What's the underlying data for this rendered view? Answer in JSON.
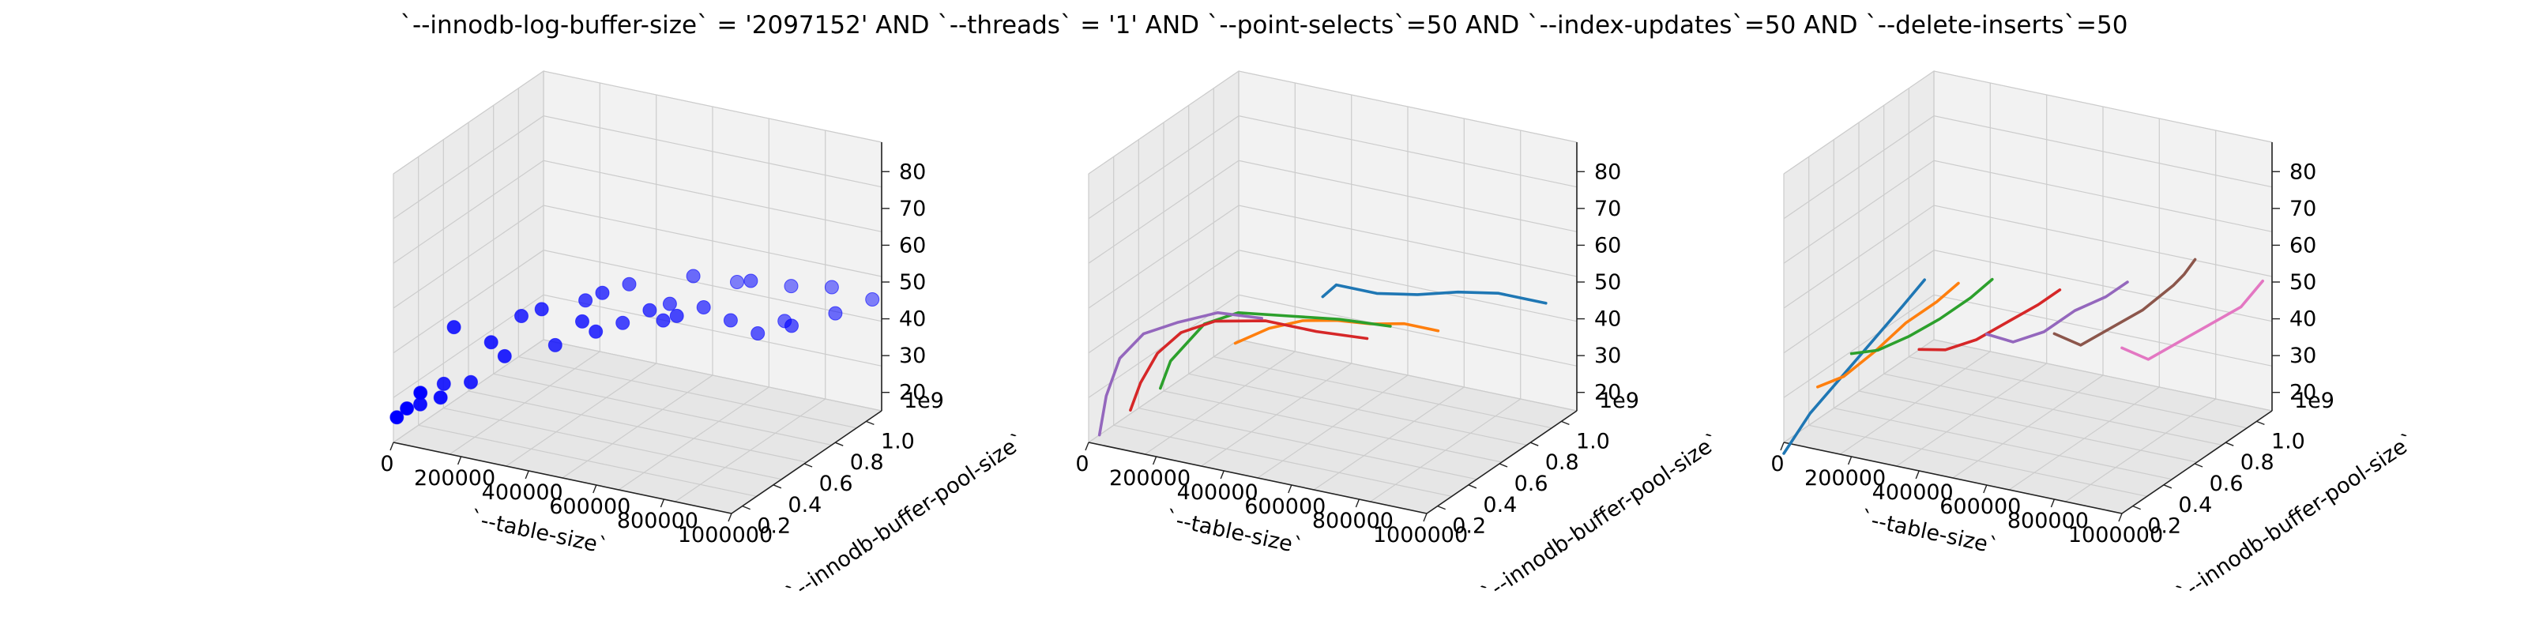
{
  "figure": {
    "title": "`--innodb-log-buffer-size` = '2097152' AND `--threads` = '1'  AND `--point-selects`=50 AND `--index-updates`=50 AND `--delete-inserts`=50"
  },
  "colors": {
    "scatter": "#0000ff",
    "pane_left": "#ebebeb",
    "pane_right": "#f2f2f2",
    "pane_floor": "#e6e6e6",
    "grid": "#cccccc",
    "series_palette": [
      "#1f77b4",
      "#ff7f0e",
      "#2ca02c",
      "#d62728",
      "#9467bd",
      "#8c564b",
      "#e377c2"
    ]
  },
  "chart_data": [
    {
      "type": "scatter3d",
      "xlabel": "`--table-size`",
      "ylabel": "`--innodb-buffer-pool-size`",
      "zlabel": "",
      "x_ticks": [
        "0",
        "200000",
        "400000",
        "600000",
        "800000",
        "1000000"
      ],
      "y_ticks": [
        "0.2",
        "0.4",
        "0.6",
        "0.8",
        "1.0"
      ],
      "y_offset_label": "1e9",
      "z_ticks": [
        "20",
        "30",
        "40",
        "50",
        "60",
        "70",
        "80"
      ],
      "xlim": [
        0,
        1000000
      ],
      "ylim": [
        0.13,
        1.1
      ],
      "zlim": [
        15,
        88
      ],
      "points": [
        {
          "x": 10000,
          "y": 0.13,
          "z": 22
        },
        {
          "x": 40000,
          "y": 0.13,
          "z": 25
        },
        {
          "x": 80000,
          "y": 0.13,
          "z": 30
        },
        {
          "x": 20000,
          "y": 0.26,
          "z": 22
        },
        {
          "x": 80000,
          "y": 0.26,
          "z": 25
        },
        {
          "x": 30000,
          "y": 0.39,
          "z": 24
        },
        {
          "x": 110000,
          "y": 0.39,
          "z": 26
        },
        {
          "x": 60000,
          "y": 0.39,
          "z": 40
        },
        {
          "x": 170000,
          "y": 0.39,
          "z": 38
        },
        {
          "x": 210000,
          "y": 0.39,
          "z": 35
        },
        {
          "x": 200000,
          "y": 0.52,
          "z": 42
        },
        {
          "x": 260000,
          "y": 0.52,
          "z": 45
        },
        {
          "x": 300000,
          "y": 0.52,
          "z": 36
        },
        {
          "x": 380000,
          "y": 0.52,
          "z": 44
        },
        {
          "x": 420000,
          "y": 0.52,
          "z": 42
        },
        {
          "x": 330000,
          "y": 0.65,
          "z": 45
        },
        {
          "x": 380000,
          "y": 0.65,
          "z": 48
        },
        {
          "x": 440000,
          "y": 0.65,
          "z": 41
        },
        {
          "x": 520000,
          "y": 0.65,
          "z": 46
        },
        {
          "x": 560000,
          "y": 0.65,
          "z": 44
        },
        {
          "x": 600000,
          "y": 0.65,
          "z": 46
        },
        {
          "x": 400000,
          "y": 0.78,
          "z": 47
        },
        {
          "x": 520000,
          "y": 0.78,
          "z": 44
        },
        {
          "x": 620000,
          "y": 0.78,
          "z": 45
        },
        {
          "x": 700000,
          "y": 0.78,
          "z": 43
        },
        {
          "x": 780000,
          "y": 0.78,
          "z": 41
        },
        {
          "x": 880000,
          "y": 0.78,
          "z": 45
        },
        {
          "x": 530000,
          "y": 0.91,
          "z": 48
        },
        {
          "x": 700000,
          "y": 0.91,
          "z": 50
        },
        {
          "x": 800000,
          "y": 0.91,
          "z": 41
        },
        {
          "x": 950000,
          "y": 0.91,
          "z": 46
        },
        {
          "x": 600000,
          "y": 1.04,
          "z": 44
        },
        {
          "x": 760000,
          "y": 1.04,
          "z": 46
        },
        {
          "x": 880000,
          "y": 1.04,
          "z": 48
        },
        {
          "x": 1000000,
          "y": 1.04,
          "z": 47
        }
      ]
    },
    {
      "type": "line3d",
      "xlabel": "`--table-size`",
      "ylabel": "`--innodb-buffer-pool-size`",
      "zlabel": "",
      "x_ticks": [
        "0",
        "200000",
        "400000",
        "600000",
        "800000",
        "1000000"
      ],
      "y_ticks": [
        "0.2",
        "0.4",
        "0.6",
        "0.8",
        "1.0"
      ],
      "y_offset_label": "1e9",
      "z_ticks": [
        "20",
        "30",
        "40",
        "50",
        "60",
        "70",
        "80"
      ],
      "xlim": [
        0,
        1000000
      ],
      "ylim": [
        0.13,
        1.1
      ],
      "zlim": [
        15,
        88
      ],
      "series": [
        {
          "x": [
            340000,
            380000,
            500000,
            620000,
            740000,
            860000,
            1000000
          ],
          "y": [
            0.9,
            0.9,
            0.9,
            0.9,
            0.9,
            0.9,
            0.9
          ],
          "z": [
            39,
            43,
            43,
            45,
            48,
            50,
            50
          ]
        },
        {
          "x": [
            150000,
            250000,
            350000,
            450000,
            550000,
            650000,
            750000
          ],
          "y": [
            0.75,
            0.75,
            0.75,
            0.75,
            0.75,
            0.75,
            0.75
          ],
          "z": [
            27,
            33,
            37,
            39,
            40,
            42,
            42
          ]
        },
        {
          "x": [
            20000,
            50000,
            100000,
            150000,
            250000,
            400000,
            550000,
            700000
          ],
          "y": [
            0.55,
            0.55,
            0.55,
            0.55,
            0.55,
            0.55,
            0.55,
            0.55
          ],
          "z": [
            18,
            26,
            32,
            38,
            43,
            45,
            47,
            48
          ]
        },
        {
          "x": [
            0,
            30000,
            80000,
            150000,
            250000,
            400000,
            550000,
            700000
          ],
          "y": [
            0.4,
            0.4,
            0.4,
            0.4,
            0.4,
            0.4,
            0.4,
            0.4
          ],
          "z": [
            16,
            24,
            33,
            40,
            45,
            48,
            48,
            49
          ]
        },
        {
          "x": [
            0,
            20000,
            60000,
            130000,
            230000,
            350000,
            480000
          ],
          "y": [
            0.2,
            0.2,
            0.2,
            0.2,
            0.2,
            0.2,
            0.2
          ],
          "z": [
            15,
            26,
            37,
            45,
            50,
            55,
            56
          ]
        }
      ]
    },
    {
      "type": "line3d",
      "xlabel": "`--table-size`",
      "ylabel": "`--innodb-buffer-pool-size`",
      "zlabel": "",
      "x_ticks": [
        "0",
        "200000",
        "400000",
        "600000",
        "800000",
        "1000000"
      ],
      "y_ticks": [
        "0.2",
        "0.4",
        "0.6",
        "0.8",
        "1.0"
      ],
      "y_offset_label": "1e9",
      "z_ticks": [
        "20",
        "30",
        "40",
        "50",
        "60",
        "70",
        "80"
      ],
      "xlim": [
        0,
        1000000
      ],
      "ylim": [
        0.13,
        1.1
      ],
      "zlim": [
        15,
        88
      ],
      "series": [
        {
          "x": [
            0,
            0,
            0,
            0,
            0,
            0
          ],
          "y": [
            0.13,
            0.3,
            0.5,
            0.7,
            0.9,
            1.04
          ],
          "z": [
            12,
            18,
            22,
            26,
            30,
            33
          ]
        },
        {
          "x": [
            100000,
            100000,
            100000,
            100000,
            100000,
            100000
          ],
          "y": [
            0.13,
            0.3,
            0.5,
            0.7,
            0.9,
            1.04
          ],
          "z": [
            32,
            30,
            31,
            33,
            33,
            34
          ]
        },
        {
          "x": [
            200000,
            200000,
            200000,
            200000,
            200000,
            200000
          ],
          "y": [
            0.13,
            0.3,
            0.5,
            0.7,
            0.9,
            1.04
          ],
          "z": [
            43,
            39,
            37,
            36,
            36,
            37
          ]
        },
        {
          "x": [
            400000,
            400000,
            400000,
            400000,
            400000,
            400000
          ],
          "y": [
            0.13,
            0.3,
            0.5,
            0.7,
            0.9,
            1.04
          ],
          "z": [
            48,
            43,
            40,
            39,
            38,
            38
          ]
        },
        {
          "x": [
            600000,
            600000,
            600000,
            600000,
            600000,
            600000
          ],
          "y": [
            0.13,
            0.3,
            0.5,
            0.7,
            0.9,
            1.04
          ],
          "z": [
            56,
            49,
            46,
            46,
            44,
            44
          ]
        },
        {
          "x": [
            800000,
            800000,
            800000,
            800000,
            800000,
            800000,
            800000
          ],
          "y": [
            0.13,
            0.3,
            0.5,
            0.7,
            0.9,
            0.97,
            1.04
          ],
          "z": [
            60,
            52,
            51,
            50,
            51,
            52,
            54
          ]
        },
        {
          "x": [
            1000000,
            1000000,
            1000000,
            1000000,
            1000000,
            1000000
          ],
          "y": [
            0.13,
            0.3,
            0.5,
            0.7,
            0.9,
            1.04
          ],
          "z": [
            60,
            52,
            51,
            50,
            49,
            52
          ]
        }
      ]
    }
  ]
}
